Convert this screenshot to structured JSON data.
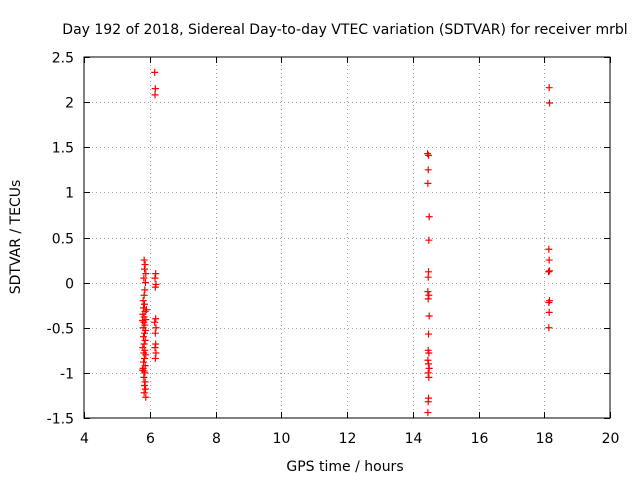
{
  "chart_data": {
    "type": "scatter",
    "title": "Day 192 of 2018, Sidereal Day-to-day VTEC variation (SDTVAR) for receiver mrbl",
    "xlabel": "GPS time / hours",
    "ylabel": "SDTVAR / TECUs",
    "xlim": [
      4,
      20
    ],
    "ylim": [
      -1.5,
      2.5
    ],
    "xticks": [
      4,
      6,
      8,
      10,
      12,
      14,
      16,
      18,
      20
    ],
    "yticks": [
      -1.5,
      -1,
      -0.5,
      0,
      0.5,
      1,
      1.5,
      2,
      2.5
    ],
    "xtick_labels": [
      "4",
      "6",
      "8",
      "10",
      "12",
      "14",
      "16",
      "18",
      "20"
    ],
    "ytick_labels": [
      "-1.5",
      "-1",
      "-0.5",
      "0",
      "0.5",
      "1",
      "1.5",
      "2",
      "2.5"
    ],
    "grid": true,
    "marker": "+",
    "marker_color": "#ff0000",
    "series": [
      {
        "name": "SDTVAR",
        "points": [
          [
            5.83,
            0.25
          ],
          [
            5.86,
            0.2
          ],
          [
            5.84,
            0.15
          ],
          [
            5.88,
            0.1
          ],
          [
            5.82,
            0.05
          ],
          [
            5.87,
            0.0
          ],
          [
            5.85,
            -0.08
          ],
          [
            5.83,
            -0.14
          ],
          [
            5.8,
            -0.2
          ],
          [
            5.84,
            -0.24
          ],
          [
            5.81,
            -0.28
          ],
          [
            5.86,
            -0.32
          ],
          [
            5.79,
            -0.35
          ],
          [
            5.83,
            -0.38
          ],
          [
            5.88,
            -0.41
          ],
          [
            5.82,
            -0.44
          ],
          [
            5.85,
            -0.47
          ],
          [
            5.8,
            -0.5
          ],
          [
            5.87,
            -0.53
          ],
          [
            5.84,
            -0.56
          ],
          [
            5.81,
            -0.6
          ],
          [
            5.86,
            -0.64
          ],
          [
            5.83,
            -0.68
          ],
          [
            5.79,
            -0.72
          ],
          [
            5.85,
            -0.75
          ],
          [
            5.82,
            -0.78
          ],
          [
            5.88,
            -0.8
          ],
          [
            5.84,
            -0.84
          ],
          [
            5.81,
            -0.88
          ],
          [
            5.86,
            -0.92
          ],
          [
            5.8,
            -0.95
          ],
          [
            5.83,
            -0.98
          ],
          [
            5.85,
            -1.0
          ],
          [
            5.82,
            -1.05
          ],
          [
            5.86,
            -1.1
          ],
          [
            5.84,
            -1.14
          ],
          [
            5.87,
            -1.18
          ],
          [
            5.83,
            -1.22
          ],
          [
            5.88,
            -1.27
          ],
          [
            5.78,
            -0.97
          ],
          [
            5.9,
            -0.3
          ],
          [
            5.78,
            -0.42
          ],
          [
            6.15,
            2.33
          ],
          [
            6.17,
            2.15
          ],
          [
            6.16,
            2.08
          ],
          [
            6.18,
            0.1
          ],
          [
            6.16,
            0.05
          ],
          [
            6.19,
            -0.02
          ],
          [
            6.17,
            -0.05
          ],
          [
            6.18,
            -0.4
          ],
          [
            6.15,
            -0.44
          ],
          [
            6.19,
            -0.5
          ],
          [
            6.17,
            -0.56
          ],
          [
            6.18,
            -0.68
          ],
          [
            6.16,
            -0.72
          ],
          [
            6.19,
            -0.78
          ],
          [
            6.17,
            -0.84
          ],
          [
            14.45,
            1.43
          ],
          [
            14.48,
            1.41
          ],
          [
            14.47,
            1.25
          ],
          [
            14.46,
            1.1
          ],
          [
            14.5,
            0.73
          ],
          [
            14.49,
            0.47
          ],
          [
            14.48,
            0.12
          ],
          [
            14.47,
            0.06
          ],
          [
            14.46,
            -0.1
          ],
          [
            14.49,
            -0.14
          ],
          [
            14.47,
            -0.18
          ],
          [
            14.5,
            -0.37
          ],
          [
            14.48,
            -0.57
          ],
          [
            14.47,
            -0.75
          ],
          [
            14.49,
            -0.78
          ],
          [
            14.46,
            -0.86
          ],
          [
            14.48,
            -0.9
          ],
          [
            14.5,
            -0.95
          ],
          [
            14.47,
            -1.0
          ],
          [
            14.49,
            -1.05
          ],
          [
            14.48,
            -1.28
          ],
          [
            14.47,
            -1.32
          ],
          [
            14.46,
            -1.44
          ],
          [
            18.15,
            2.16
          ],
          [
            18.16,
            1.99
          ],
          [
            18.14,
            0.37
          ],
          [
            18.15,
            0.25
          ],
          [
            18.16,
            0.13
          ],
          [
            18.13,
            0.12
          ],
          [
            18.16,
            -0.2
          ],
          [
            18.14,
            -0.22
          ],
          [
            18.15,
            -0.33
          ],
          [
            18.14,
            -0.5
          ]
        ]
      }
    ]
  }
}
